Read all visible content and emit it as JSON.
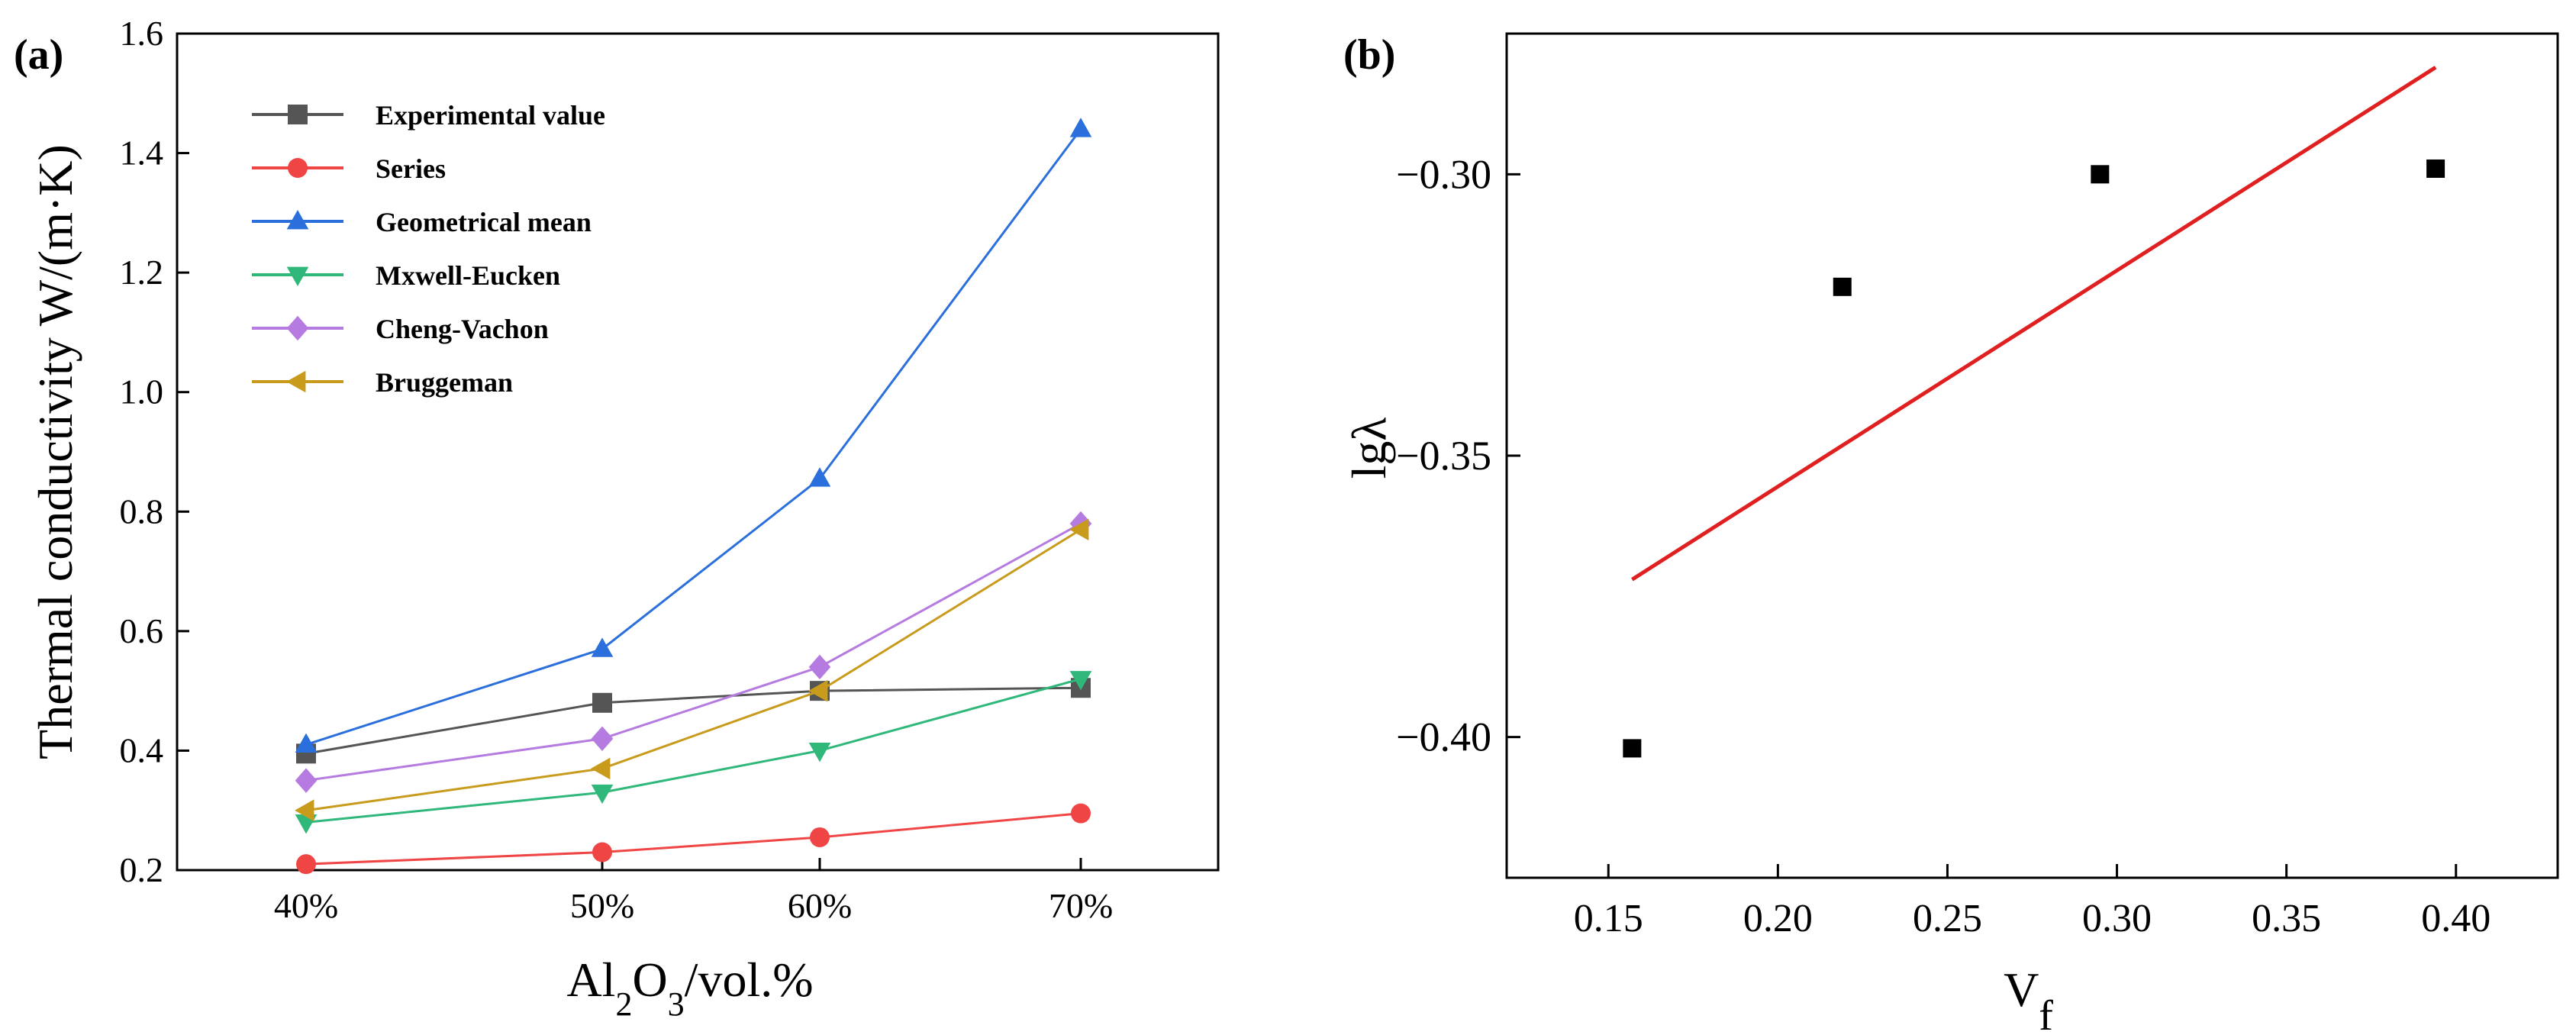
{
  "chart_data": [
    {
      "type": "line",
      "panel_label": "(a)",
      "title": "",
      "xlabel": {
        "main": "Al",
        "sub1": "2",
        "mid": "O",
        "sub2": "3",
        "tail": "/vol.%"
      },
      "ylabel": "Thermal conductivity W/(m·K)",
      "categories": [
        "40%",
        "50%",
        "60%",
        "70%"
      ],
      "ylim": [
        0.2,
        1.6
      ],
      "yticks": [
        "0.2",
        "0.4",
        "0.6",
        "0.8",
        "1.0",
        "1.2",
        "1.4",
        "1.6"
      ],
      "legend_position": "top-left",
      "series": [
        {
          "name": "Experimental value",
          "color": "#555555",
          "marker": "square",
          "values": [
            0.395,
            0.48,
            0.5,
            0.505
          ]
        },
        {
          "name": "Series",
          "color": "#f04545",
          "marker": "circle",
          "values": [
            0.21,
            0.23,
            0.255,
            0.295
          ]
        },
        {
          "name": "Geometrical mean",
          "color": "#2a6fdb",
          "marker": "triangle-up",
          "values": [
            0.41,
            0.57,
            0.855,
            1.44
          ]
        },
        {
          "name": "Mxwell-Eucken",
          "color": "#2fb87a",
          "marker": "triangle-down",
          "values": [
            0.28,
            0.33,
            0.4,
            0.52
          ]
        },
        {
          "name": "Cheng-Vachon",
          "color": "#b57be0",
          "marker": "diamond",
          "values": [
            0.35,
            0.42,
            0.54,
            0.78
          ]
        },
        {
          "name": "Bruggeman",
          "color": "#c89b1c",
          "marker": "triangle-left",
          "values": [
            0.3,
            0.37,
            0.5,
            0.77
          ]
        }
      ]
    },
    {
      "type": "scatter",
      "panel_label": "(b)",
      "title": "",
      "xlabel": {
        "main": "V",
        "sub": "f"
      },
      "ylabel": "lgλ",
      "xlim": [
        0.12,
        0.43
      ],
      "ylim": [
        -0.425,
        -0.275
      ],
      "xticks": [
        "0.15",
        "0.20",
        "0.25",
        "0.30",
        "0.35",
        "0.40"
      ],
      "yticks": [
        "−0.30",
        "−0.35",
        "−0.40"
      ],
      "points": {
        "x": [
          0.157,
          0.219,
          0.295,
          0.394
        ],
        "y": [
          -0.402,
          -0.32,
          -0.3,
          -0.299
        ],
        "color": "#000000"
      },
      "fit_line": {
        "x": [
          0.157,
          0.394
        ],
        "y": [
          -0.372,
          -0.281
        ],
        "color": "#e02020"
      }
    }
  ]
}
